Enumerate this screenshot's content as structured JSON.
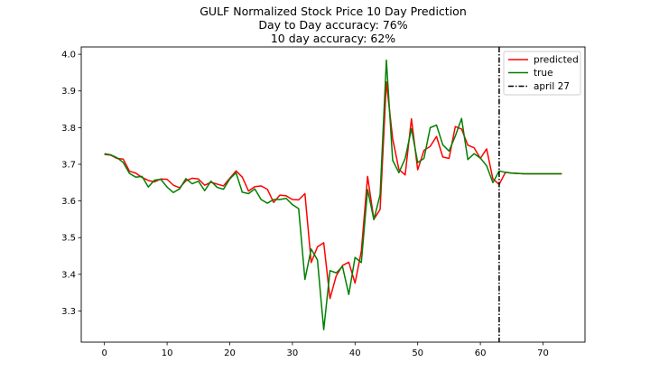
{
  "chart_data": {
    "type": "line",
    "title_lines": [
      "GULF Normalized Stock Price 10 Day Prediction",
      "Day to Day accuracy: 76%",
      "10 day accuracy: 62%"
    ],
    "xlabel": "",
    "ylabel": "",
    "xlim": [
      -3.7,
      76.7
    ],
    "ylim": [
      3.215,
      4.02
    ],
    "xticks": [
      0,
      10,
      20,
      30,
      40,
      50,
      60,
      70
    ],
    "yticks": [
      3.3,
      3.4,
      3.5,
      3.6,
      3.7,
      3.8,
      3.9,
      4.0
    ],
    "ytick_labels": [
      "3.3",
      "3.4",
      "3.5",
      "3.6",
      "3.7",
      "3.8",
      "3.9",
      "4.0"
    ],
    "grid": false,
    "legend_position": "upper right",
    "series": [
      {
        "name": "predicted",
        "color": "#ff0000",
        "x": [
          0,
          1,
          2,
          3,
          4,
          5,
          6,
          7,
          8,
          9,
          10,
          11,
          12,
          13,
          14,
          15,
          16,
          17,
          18,
          19,
          20,
          21,
          22,
          23,
          24,
          25,
          26,
          27,
          28,
          29,
          30,
          31,
          32,
          33,
          34,
          35,
          36,
          37,
          38,
          39,
          40,
          41,
          42,
          43,
          44,
          45,
          46,
          47,
          48,
          49,
          50,
          51,
          52,
          53,
          54,
          55,
          56,
          57,
          58,
          59,
          60,
          61,
          62,
          63,
          64,
          65,
          66,
          67,
          68,
          69,
          70,
          71,
          72,
          73
        ],
        "values": [
          3.727,
          3.725,
          3.716,
          3.714,
          3.681,
          3.676,
          3.664,
          3.656,
          3.652,
          3.66,
          3.659,
          3.643,
          3.636,
          3.655,
          3.662,
          3.66,
          3.643,
          3.651,
          3.646,
          3.641,
          3.662,
          3.682,
          3.665,
          3.627,
          3.639,
          3.641,
          3.632,
          3.596,
          3.616,
          3.614,
          3.604,
          3.603,
          3.62,
          3.432,
          3.475,
          3.486,
          3.334,
          3.396,
          3.424,
          3.433,
          3.376,
          3.463,
          3.667,
          3.55,
          3.577,
          3.925,
          3.77,
          3.686,
          3.671,
          3.824,
          3.685,
          3.738,
          3.749,
          3.776,
          3.72,
          3.716,
          3.803,
          3.796,
          3.752,
          3.745,
          3.716,
          3.742,
          3.66,
          3.645,
          3.678,
          3.676,
          3.675,
          3.674,
          3.674,
          3.674,
          3.674,
          3.674,
          3.674,
          3.674
        ]
      },
      {
        "name": "true",
        "color": "#008000",
        "x": [
          0,
          1,
          2,
          3,
          4,
          5,
          6,
          7,
          8,
          9,
          10,
          11,
          12,
          13,
          14,
          15,
          16,
          17,
          18,
          19,
          20,
          21,
          22,
          23,
          24,
          25,
          26,
          27,
          28,
          29,
          30,
          31,
          32,
          33,
          34,
          35,
          36,
          37,
          38,
          39,
          40,
          41,
          42,
          43,
          44,
          45,
          46,
          47,
          48,
          49,
          50,
          51,
          52,
          53,
          54,
          55,
          56,
          57,
          58,
          59,
          60,
          61,
          62,
          63,
          64,
          65,
          66,
          67,
          68,
          69,
          70,
          71,
          72,
          73
        ],
        "values": [
          3.729,
          3.726,
          3.718,
          3.705,
          3.675,
          3.665,
          3.667,
          3.638,
          3.657,
          3.659,
          3.638,
          3.623,
          3.633,
          3.661,
          3.647,
          3.654,
          3.628,
          3.654,
          3.637,
          3.632,
          3.66,
          3.677,
          3.624,
          3.62,
          3.633,
          3.604,
          3.594,
          3.604,
          3.604,
          3.607,
          3.59,
          3.579,
          3.386,
          3.469,
          3.439,
          3.249,
          3.41,
          3.404,
          3.421,
          3.345,
          3.446,
          3.432,
          3.631,
          3.549,
          3.617,
          3.984,
          3.711,
          3.677,
          3.716,
          3.797,
          3.705,
          3.716,
          3.8,
          3.807,
          3.753,
          3.736,
          3.777,
          3.825,
          3.713,
          3.729,
          3.717,
          3.696,
          3.65,
          3.682,
          3.678,
          3.676,
          3.675,
          3.674,
          3.674,
          3.674,
          3.674,
          3.674,
          3.674,
          3.674
        ]
      },
      {
        "name": "april 27",
        "color": "#000000",
        "style": "dashdot",
        "vertical_x": 63
      }
    ]
  }
}
